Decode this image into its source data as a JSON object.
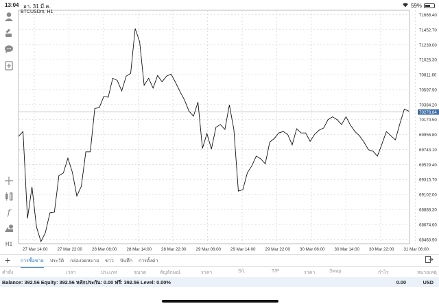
{
  "status": {
    "time": "13:04",
    "date": "อา. 31 มี.ค.",
    "battery": "59%",
    "battery_level": 0.59
  },
  "symbol": "BTCUSDm, H1",
  "sidebar": {
    "icons": [
      "account-icon",
      "trade-icon",
      "chat-icon",
      "add-document-icon",
      "crosshair-icon",
      "indicator-icon",
      "function-icon",
      "objects-icon",
      "timeframe-icon"
    ],
    "timeframe": "H1"
  },
  "chart_data": {
    "type": "line",
    "series": [
      {
        "values": [
          69930,
          70000,
          68760,
          69210,
          68640,
          68430,
          68560,
          68840,
          68850,
          69370,
          69410,
          69620,
          69420,
          69080,
          69220,
          69710,
          69710,
          70330,
          70340,
          70500,
          70490,
          70760,
          70730,
          70580,
          70790,
          70830,
          71470,
          71280,
          70660,
          70760,
          70620,
          70800,
          70710,
          70790,
          70820,
          70700,
          70570,
          70450,
          70290,
          70220,
          70420,
          69760,
          69970,
          69750,
          70060,
          70100,
          70030,
          70380,
          70030,
          69150,
          69170,
          69410,
          69510,
          69650,
          69610,
          69540,
          69850,
          69900,
          69980,
          70000,
          69960,
          69810,
          70040,
          69980,
          69980,
          69860,
          69960,
          70020,
          70050,
          70170,
          70210,
          70170,
          70100,
          70210,
          70090,
          70000,
          69940,
          69850,
          69740,
          69720,
          69650,
          69820,
          70000,
          69940,
          69880,
          70110,
          70320,
          70290
        ]
      }
    ],
    "x_ticks": [
      "27 Mar 14:00",
      "27 Mar 22:00",
      "28 Mar 06:00",
      "28 Mar 14:00",
      "28 Mar 22:00",
      "29 Mar 06:00",
      "29 Mar 14:00",
      "29 Mar 22:00",
      "30 Mar 06:00",
      "30 Mar 14:00",
      "30 Mar 22:00",
      "31 Mar 06:00"
    ],
    "y_ticks": [
      "71666.40",
      "71452.70",
      "71239.00",
      "71025.30",
      "70811.60",
      "70597.90",
      "70384.20",
      "70170.50",
      "69956.80",
      "69743.10",
      "69529.40",
      "69315.70",
      "69102.00",
      "68888.30",
      "68674.60",
      "68460.90"
    ],
    "ylim": [
      68400,
      71730
    ],
    "current_price": 70278.84,
    "current_price_label": "70278.84",
    "grid": true
  },
  "toolbar": {
    "tabs": [
      "การซื้อขาย",
      "ประวัติ",
      "กล่องจดหมาย",
      "ข่าว",
      "บันทึก",
      "การตั้งค่า"
    ],
    "active": 0
  },
  "columns": [
    "คำสั่ง",
    "เวลา",
    "ประเภท",
    "ขนาด",
    "สัญลักษณ์",
    "ราคา",
    "S/L",
    "T/P",
    "ราคา",
    "Swap",
    "กำไร",
    "หมายเหตุ"
  ],
  "balance": {
    "text": "Balance: 392.56 Equity: 392.56 หลักประกัน: 0.00 ฟรี: 392.56 Level: 0.00%",
    "total": "0.00",
    "currency": "USD"
  }
}
